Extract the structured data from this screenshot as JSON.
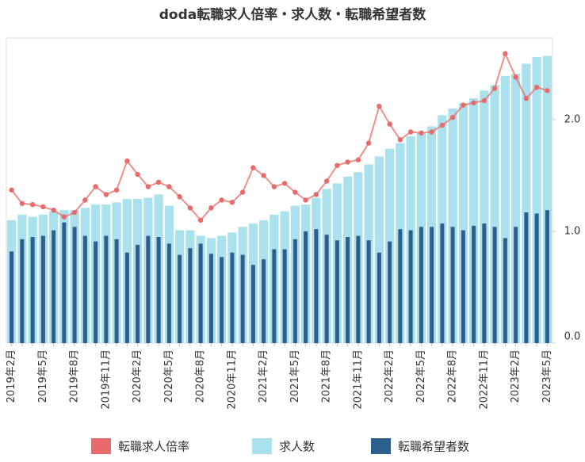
{
  "chart_data": {
    "type": "bar",
    "title": "doda転職求人倍率・求人数・転職希望者数",
    "categories": [
      "2019年2月",
      null,
      null,
      "2019年5月",
      null,
      null,
      "2019年8月",
      null,
      null,
      "2019年11月",
      null,
      null,
      "2020年2月",
      null,
      null,
      "2020年5月",
      null,
      null,
      "2020年8月",
      null,
      null,
      "2020年11月",
      null,
      null,
      "2021年2月",
      null,
      null,
      "2021年5月",
      null,
      null,
      "2021年8月",
      null,
      null,
      "2021年11月",
      null,
      null,
      "2022年2月",
      null,
      null,
      "2022年5月",
      null,
      null,
      "2022年8月",
      null,
      null,
      "2022年11月",
      null,
      null,
      "2023年2月",
      null,
      null,
      "2023年5月"
    ],
    "series": [
      {
        "name": "転職求人倍率",
        "type": "line",
        "color": "#e86a6a",
        "values": [
          1.37,
          1.25,
          1.24,
          1.22,
          1.19,
          1.13,
          1.17,
          1.28,
          1.4,
          1.33,
          1.37,
          1.63,
          1.51,
          1.4,
          1.44,
          1.4,
          1.31,
          1.21,
          1.1,
          1.21,
          1.28,
          1.26,
          1.35,
          1.57,
          1.5,
          1.4,
          1.43,
          1.35,
          1.28,
          1.33,
          1.45,
          1.59,
          1.62,
          1.64,
          1.79,
          2.12,
          1.96,
          1.82,
          1.89,
          1.88,
          1.89,
          1.95,
          2.02,
          2.13,
          2.15,
          2.17,
          2.28,
          2.59,
          2.38,
          2.19,
          2.29,
          2.26
        ]
      },
      {
        "name": "求人数",
        "type": "bar",
        "color": "#a9e1ed",
        "values": [
          1.1,
          1.15,
          1.13,
          1.15,
          1.18,
          1.19,
          1.19,
          1.21,
          1.24,
          1.24,
          1.26,
          1.29,
          1.29,
          1.3,
          1.33,
          1.23,
          1.01,
          1.01,
          0.96,
          0.94,
          0.96,
          0.99,
          1.04,
          1.07,
          1.1,
          1.15,
          1.18,
          1.23,
          1.24,
          1.3,
          1.38,
          1.43,
          1.49,
          1.53,
          1.6,
          1.67,
          1.74,
          1.79,
          1.85,
          1.88,
          1.94,
          2.04,
          2.1,
          2.15,
          2.19,
          2.26,
          2.31,
          2.39,
          2.41,
          2.5,
          2.56,
          2.57
        ]
      },
      {
        "name": "転職希望者数",
        "type": "bar",
        "color": "#2c5f8c",
        "values": [
          0.82,
          0.93,
          0.95,
          0.96,
          1.01,
          1.08,
          1.04,
          0.96,
          0.91,
          0.96,
          0.93,
          0.81,
          0.88,
          0.96,
          0.95,
          0.89,
          0.79,
          0.85,
          0.89,
          0.8,
          0.77,
          0.81,
          0.79,
          0.7,
          0.75,
          0.84,
          0.84,
          0.93,
          1.0,
          1.02,
          0.97,
          0.92,
          0.95,
          0.96,
          0.92,
          0.81,
          0.91,
          1.02,
          1.01,
          1.04,
          1.04,
          1.07,
          1.04,
          1.01,
          1.05,
          1.07,
          1.04,
          0.94,
          1.04,
          1.17,
          1.16,
          1.19
        ]
      }
    ],
    "ylim": [
      0,
      2.73
    ],
    "yticks": [
      {
        "value": 0,
        "label": "0.0"
      },
      {
        "value": 1,
        "label": "1.0"
      },
      {
        "value": 2,
        "label": "2.0"
      }
    ],
    "legend": "bottom"
  }
}
